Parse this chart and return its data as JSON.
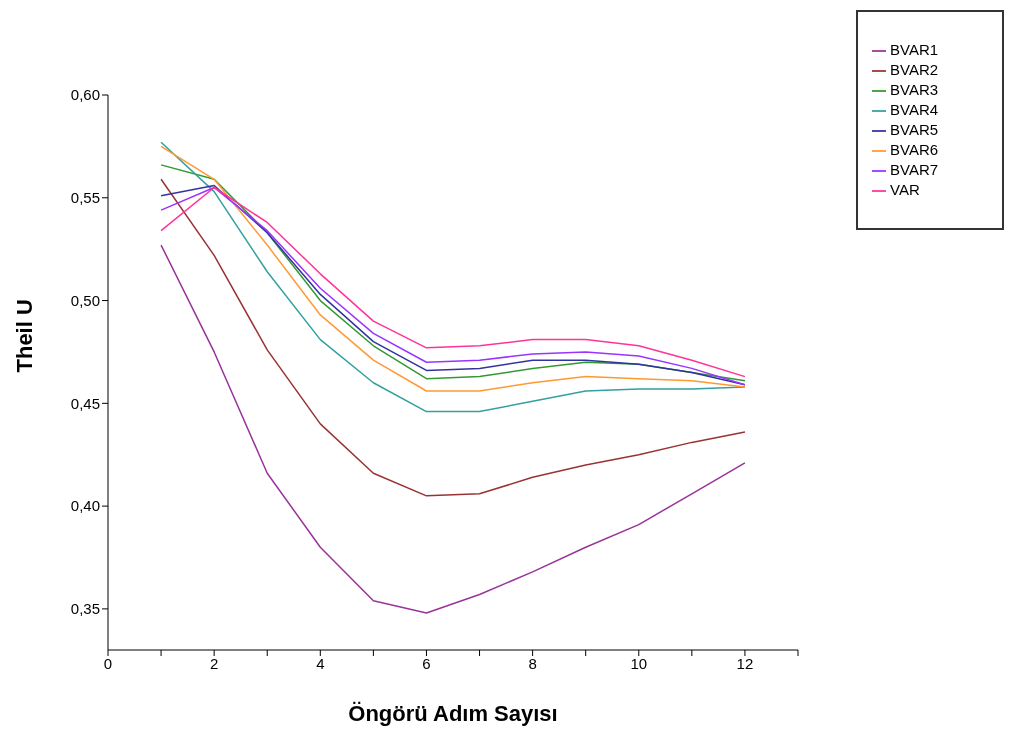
{
  "chart_data": {
    "type": "line",
    "xlabel": "Öngörü Adım Sayısı",
    "ylabel": "Theil U",
    "x": [
      1,
      2,
      3,
      4,
      5,
      6,
      7,
      8,
      9,
      10,
      11,
      12
    ],
    "series": [
      {
        "name": "BVAR1",
        "color": "#993399",
        "values": [
          0.527,
          0.475,
          0.416,
          0.38,
          0.354,
          0.348,
          0.357,
          0.368,
          0.38,
          0.391,
          0.406,
          0.421
        ]
      },
      {
        "name": "BVAR2",
        "color": "#993333",
        "values": [
          0.559,
          0.522,
          0.476,
          0.44,
          0.416,
          0.405,
          0.406,
          0.414,
          0.42,
          0.425,
          0.431,
          0.436
        ]
      },
      {
        "name": "BVAR3",
        "color": "#339933",
        "values": [
          0.566,
          0.559,
          0.533,
          0.5,
          0.478,
          0.462,
          0.463,
          0.467,
          0.47,
          0.469,
          0.465,
          0.461
        ]
      },
      {
        "name": "BVAR4",
        "color": "#33a0a0",
        "values": [
          0.577,
          0.553,
          0.514,
          0.481,
          0.46,
          0.446,
          0.446,
          0.451,
          0.456,
          0.457,
          0.457,
          0.458
        ]
      },
      {
        "name": "BVAR5",
        "color": "#3333a0",
        "values": [
          0.551,
          0.556,
          0.533,
          0.503,
          0.48,
          0.466,
          0.467,
          0.471,
          0.471,
          0.469,
          0.465,
          0.459
        ]
      },
      {
        "name": "BVAR6",
        "color": "#ff9933",
        "values": [
          0.575,
          0.559,
          0.527,
          0.493,
          0.471,
          0.456,
          0.456,
          0.46,
          0.463,
          0.462,
          0.461,
          0.458
        ]
      },
      {
        "name": "BVAR7",
        "color": "#9933ff",
        "values": [
          0.544,
          0.555,
          0.534,
          0.506,
          0.484,
          0.47,
          0.471,
          0.474,
          0.475,
          0.473,
          0.467,
          0.459
        ]
      },
      {
        "name": "VAR",
        "color": "#ff3399",
        "values": [
          0.534,
          0.555,
          0.538,
          0.513,
          0.49,
          0.477,
          0.478,
          0.481,
          0.481,
          0.478,
          0.471,
          0.463
        ]
      }
    ],
    "xlim": [
      0,
      13
    ],
    "xticks": [
      0,
      {
        "value": 1,
        "label": null
      },
      2,
      {
        "value": 3,
        "label": null
      },
      4,
      {
        "value": 5,
        "label": null
      },
      6,
      {
        "value": 7,
        "label": null
      },
      8,
      {
        "value": 9,
        "label": null
      },
      10,
      {
        "value": 11,
        "label": null
      },
      12,
      {
        "value": 13,
        "label": null
      }
    ],
    "ylim": [
      0.33,
      0.6
    ],
    "yticks": [
      {
        "value": 0.35,
        "label": "0,35"
      },
      {
        "value": 0.4,
        "label": "0,40"
      },
      {
        "value": 0.45,
        "label": "0,45"
      },
      {
        "value": 0.5,
        "label": "0,50"
      },
      {
        "value": 0.55,
        "label": "0,55"
      },
      {
        "value": 0.6,
        "label": "0,60"
      }
    ],
    "grid": false,
    "legend": "top right",
    "marker": "none",
    "line_style": "solid"
  }
}
